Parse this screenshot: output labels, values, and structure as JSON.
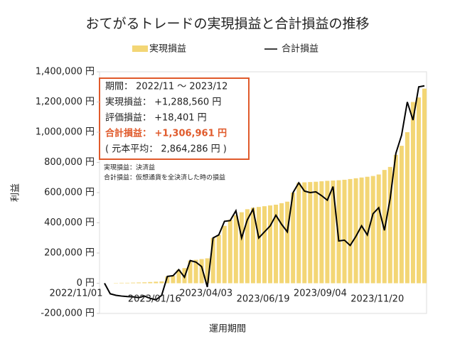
{
  "chart_data": {
    "type": "bar-line",
    "title": "おてがるトレードの実現損益と合計損益の推移",
    "x_label": "運用期間",
    "y_label": "利益",
    "categories": [
      "2022/11/01",
      null,
      null,
      null,
      null,
      null,
      null,
      null,
      null,
      null,
      "2023/01/16",
      null,
      null,
      null,
      null,
      null,
      null,
      null,
      null,
      "2023/04/03",
      null,
      null,
      null,
      null,
      null,
      null,
      null,
      null,
      null,
      "2023/06/19",
      null,
      null,
      null,
      null,
      null,
      null,
      null,
      null,
      null,
      "2023/09/04",
      null,
      null,
      null,
      null,
      null,
      null,
      null,
      null,
      null,
      "2023/11/20",
      null,
      null,
      null,
      null,
      null,
      null,
      null
    ],
    "series": [
      {
        "name": "実現損益",
        "kind": "bar",
        "color": "#f3d675",
        "values": [
          0,
          0,
          2000,
          3000,
          3000,
          4000,
          5000,
          6000,
          8000,
          10000,
          12000,
          45000,
          50000,
          90000,
          100000,
          150000,
          155000,
          160000,
          165000,
          300000,
          320000,
          380000,
          420000,
          450000,
          470000,
          490000,
          500000,
          505000,
          510000,
          515000,
          520000,
          530000,
          540000,
          600000,
          665000,
          668000,
          670000,
          672000,
          675000,
          678000,
          680000,
          682000,
          685000,
          690000,
          695000,
          700000,
          705000,
          710000,
          720000,
          750000,
          770000,
          850000,
          910000,
          1000000,
          1200000,
          1230000,
          1288560
        ]
      },
      {
        "name": "合計損益",
        "kind": "line",
        "color": "#000000",
        "values": [
          0,
          -70000,
          -80000,
          -85000,
          -88000,
          -90000,
          -95000,
          -85000,
          -100000,
          -110000,
          -80000,
          45000,
          50000,
          90000,
          40000,
          150000,
          140000,
          110000,
          -25000,
          300000,
          320000,
          410000,
          415000,
          480000,
          300000,
          420000,
          490000,
          300000,
          340000,
          380000,
          450000,
          390000,
          340000,
          600000,
          665000,
          610000,
          600000,
          605000,
          580000,
          550000,
          640000,
          280000,
          285000,
          250000,
          310000,
          380000,
          320000,
          460000,
          500000,
          350000,
          560000,
          860000,
          980000,
          1200000,
          1080000,
          1300000,
          1306961
        ]
      }
    ],
    "ylim": [
      -200000,
      1400000
    ],
    "yticks": [
      {
        "value": -200000,
        "label": "-200,000 円"
      },
      {
        "value": 0,
        "label": "0 円"
      },
      {
        "value": 200000,
        "label": "200,000 円"
      },
      {
        "value": 400000,
        "label": "400,000 円"
      },
      {
        "value": 600000,
        "label": "600,000 円"
      },
      {
        "value": 800000,
        "label": "800,000 円"
      },
      {
        "value": 1000000,
        "label": "1,000,000 円"
      },
      {
        "value": 1200000,
        "label": "1,200,000 円"
      },
      {
        "value": 1400000,
        "label": "1,400,000 円"
      }
    ],
    "info_box": [
      "期間： 2022/11 ～ 2023/12",
      "実現損益： +1,288,560 円",
      "評価損益： +18,401 円",
      "合計損益： +1,306,961 円",
      "( 元本平均： 2,864,286 円 )"
    ],
    "notes": [
      "実現損益：決済益",
      "合計損益：仮想通貨を全決済した時の損益"
    ]
  }
}
